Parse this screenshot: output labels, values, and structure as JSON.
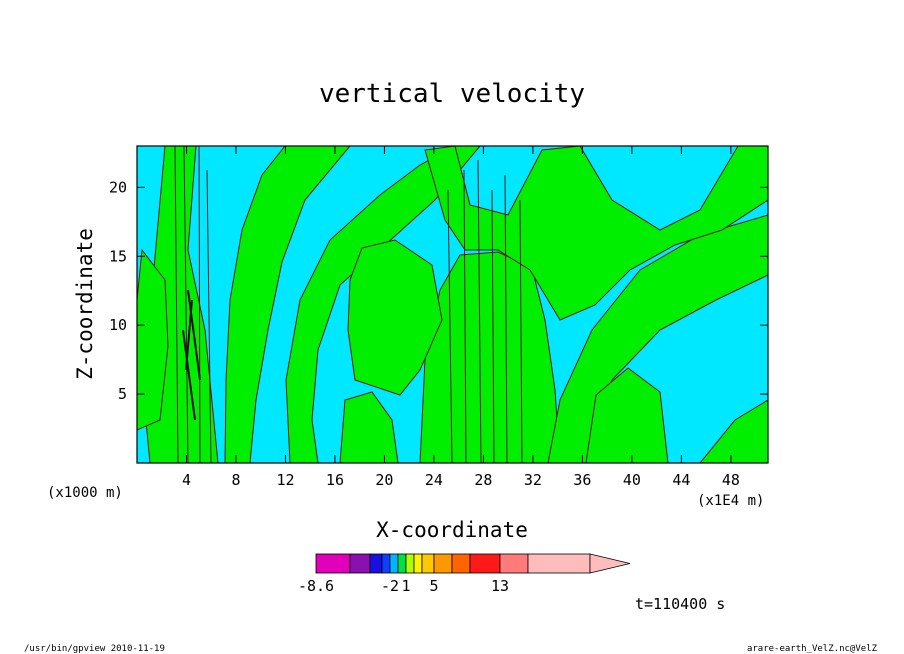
{
  "chart_data": {
    "type": "heatmap",
    "title": "vertical velocity",
    "xlabel": "X-coordinate",
    "ylabel": "Z-coordinate",
    "x_scale_note": "(x1000 m)",
    "x_unit_note": "(x1E4 m)",
    "xlim": [
      0,
      51
    ],
    "ylim": [
      0,
      23
    ],
    "x_ticks": [
      "4",
      "8",
      "12",
      "16",
      "20",
      "24",
      "28",
      "32",
      "36",
      "40",
      "44",
      "48"
    ],
    "y_ticks": [
      "5",
      "10",
      "15",
      "20"
    ],
    "time_label": "t=110400 s",
    "colorbar": {
      "colors": [
        "#e000b8",
        "#8a10b0",
        "#1810e0",
        "#1040ff",
        "#00b4ff",
        "#00e040",
        "#b0ff00",
        "#fff200",
        "#ffc800",
        "#ff9800",
        "#ff6400",
        "#ff1a1a",
        "#ff7a7a",
        "#ffbcbc"
      ],
      "tick_labels": [
        "-8.6",
        "-2",
        "1",
        "5",
        "13"
      ],
      "extend": "max"
    },
    "contour_fill": {
      "negative_color": "#00e8ff",
      "positive_color": "#00ee00",
      "line_color": "#5a1a1a"
    },
    "shape_scale": "hm"
  },
  "footer": {
    "left": "/usr/bin/gpview   2010-11-19",
    "right": "arare-earth_VelZ.nc@VelZ"
  }
}
